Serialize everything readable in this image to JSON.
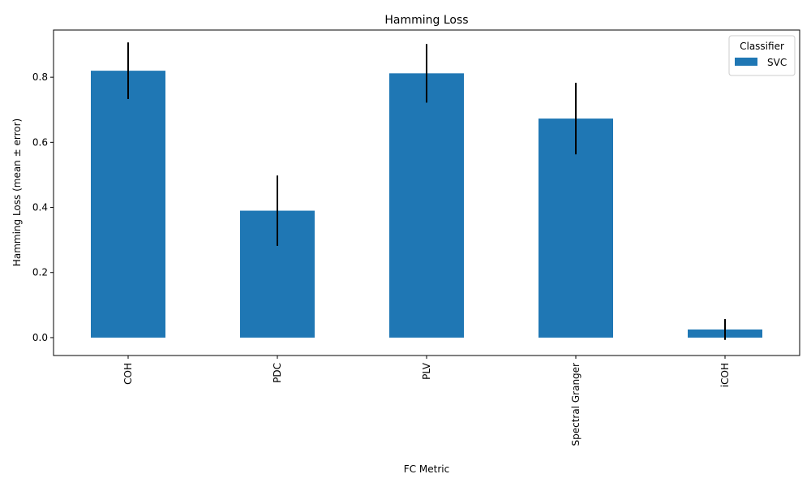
{
  "chart_data": {
    "type": "bar",
    "title": "Hamming Loss",
    "xlabel": "FC Metric",
    "ylabel": "Hamming Loss (mean ± error)",
    "categories": [
      "COH",
      "PDC",
      "PLV",
      "Spectral Granger",
      "iCOH"
    ],
    "series": [
      {
        "name": "SVC",
        "values": [
          0.82,
          0.39,
          0.812,
          0.673,
          0.025
        ],
        "errors": [
          0.087,
          0.108,
          0.09,
          0.11,
          0.032
        ],
        "color": "#1f77b4"
      }
    ],
    "ylim": [
      -0.055,
      0.945
    ],
    "yticks": [
      0.0,
      0.2,
      0.4,
      0.6,
      0.8
    ],
    "ytick_labels": [
      "0.0",
      "0.2",
      "0.4",
      "0.6",
      "0.8"
    ],
    "grid": false,
    "legend": {
      "title": "Classifier",
      "placement": "top-right"
    },
    "error_bar_color": "#000000"
  }
}
